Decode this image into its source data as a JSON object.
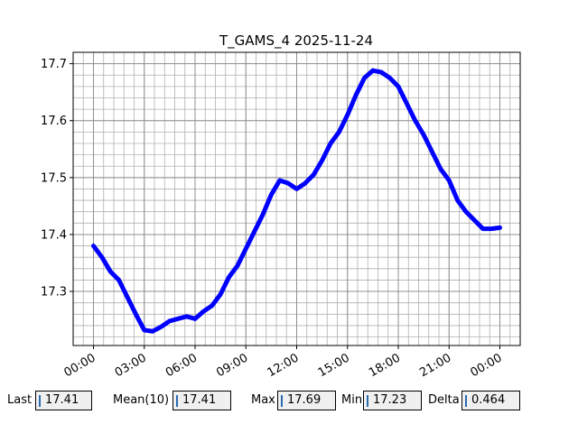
{
  "chart_data": {
    "type": "line",
    "title": "T_GAMS_4 2025-11-24",
    "xlabel": "",
    "ylabel": "",
    "x_tick_labels": [
      "00:00",
      "03:00",
      "06:00",
      "09:00",
      "12:00",
      "15:00",
      "18:00",
      "21:00",
      "00:00"
    ],
    "x_tick_hours": [
      0,
      3,
      6,
      9,
      12,
      15,
      18,
      21,
      24
    ],
    "xlim_hours": [
      -1.2,
      25.2
    ],
    "y_tick_labels": [
      "17.3",
      "17.4",
      "17.5",
      "17.6",
      "17.7"
    ],
    "y_tick_values": [
      17.3,
      17.4,
      17.5,
      17.6,
      17.7
    ],
    "ylim": [
      17.205,
      17.72
    ],
    "grid": true,
    "line_color": "#0000ff",
    "series": [
      {
        "x_hours": [
          0.0,
          0.5,
          1.0,
          1.5,
          2.0,
          2.5,
          3.0,
          3.5,
          4.0,
          4.5,
          5.0,
          5.5,
          6.0,
          6.5,
          7.0,
          7.5,
          8.0,
          8.5,
          9.0,
          9.5,
          10.0,
          10.5,
          11.0,
          11.5,
          12.0,
          12.5,
          13.0,
          13.5,
          14.0,
          14.5,
          15.0,
          15.5,
          16.0,
          16.5,
          17.0,
          17.5,
          18.0,
          18.5,
          19.0,
          19.5,
          20.0,
          20.5,
          21.0,
          21.5,
          22.0,
          22.5,
          23.0,
          23.5,
          24.0
        ],
        "y": [
          17.38,
          17.36,
          17.335,
          17.32,
          17.29,
          17.26,
          17.232,
          17.23,
          17.238,
          17.248,
          17.252,
          17.256,
          17.252,
          17.265,
          17.275,
          17.295,
          17.325,
          17.345,
          17.375,
          17.405,
          17.435,
          17.47,
          17.495,
          17.49,
          17.48,
          17.49,
          17.505,
          17.53,
          17.56,
          17.58,
          17.61,
          17.645,
          17.675,
          17.688,
          17.685,
          17.675,
          17.66,
          17.63,
          17.6,
          17.575,
          17.545,
          17.515,
          17.495,
          17.46,
          17.44,
          17.425,
          17.41,
          17.41,
          17.412
        ]
      }
    ]
  },
  "stats": [
    {
      "label": "Last",
      "value": "17.41"
    },
    {
      "label": "Mean(10)",
      "value": "17.41"
    },
    {
      "label": "Max",
      "value": "17.69"
    },
    {
      "label": "Min",
      "value": "17.23"
    },
    {
      "label": "Delta",
      "value": "0.464"
    }
  ]
}
